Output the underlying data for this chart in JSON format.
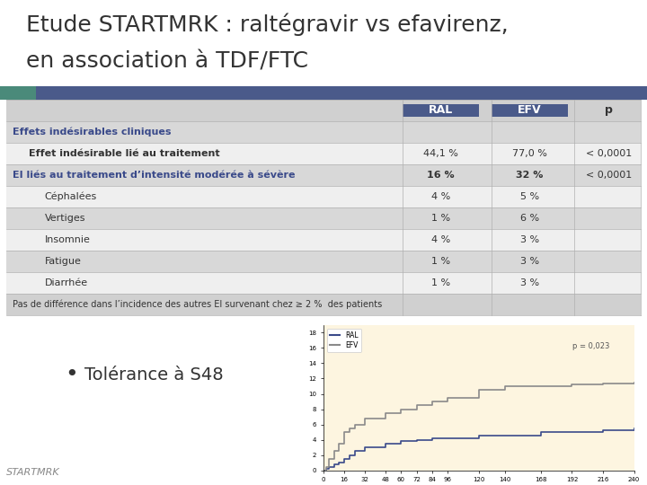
{
  "title_line1": "Etude STARTMRK : raltégravir vs efavirenz,",
  "title_line2": "en association à TDF/FTC",
  "title_color": "#333333",
  "title_fontsize": 18,
  "header_bar_color": "#4a5a8a",
  "header_teal_color": "#4a8a7a",
  "bg_color": "#ffffff",
  "table_header_bg": "#4a5a8a",
  "table_header_text": "#ffffff",
  "table_alt_bg": "#e8e8e8",
  "table_white_bg": "#ffffff",
  "col_ral": "RAL",
  "col_efv": "EFV",
  "col_p": "p",
  "rows": [
    {
      "label": "Effets indésirables cliniques",
      "ral": "",
      "efv": "",
      "p": "",
      "style": "section_header",
      "indent": 0
    },
    {
      "label": "Effet indésirable lié au traitement",
      "ral": "44,1 %",
      "efv": "77,0 %",
      "p": "< 0,0001",
      "style": "normal",
      "indent": 1
    },
    {
      "label": "EI liés au traitement d’intensité modérée à sévère",
      "ral": "16 %",
      "efv": "32 %",
      "p": "< 0,0001",
      "style": "section_header2",
      "indent": 0
    },
    {
      "label": "Céphalées",
      "ral": "4 %",
      "efv": "5 %",
      "p": "",
      "style": "normal",
      "indent": 2
    },
    {
      "label": "Vertiges",
      "ral": "1 %",
      "efv": "6 %",
      "p": "",
      "style": "normal",
      "indent": 2
    },
    {
      "label": "Insomnie",
      "ral": "4 %",
      "efv": "3 %",
      "p": "",
      "style": "normal",
      "indent": 2
    },
    {
      "label": "Fatigue",
      "ral": "1 %",
      "efv": "3 %",
      "p": "",
      "style": "normal",
      "indent": 2
    },
    {
      "label": "Diarrhée",
      "ral": "1 %",
      "efv": "3 %",
      "p": "",
      "style": "normal",
      "indent": 2
    },
    {
      "label": "Pas de différence dans l’incidence des autres EI survenant chez ≥ 2 %  des patients",
      "ral": "",
      "efv": "",
      "p": "",
      "style": "footnote",
      "indent": 0
    }
  ],
  "bullet_text": "Tolérance à S48",
  "startmrk_text": "STARTMRK",
  "ral_color": "#3a4a8a",
  "efv_color": "#8a8a8a",
  "p_annot": "p = 0,023",
  "ral_x": [
    0,
    2,
    4,
    8,
    12,
    16,
    20,
    24,
    32,
    48,
    60,
    72,
    84,
    96,
    120,
    140,
    168,
    192,
    216,
    240
  ],
  "ral_y": [
    0,
    0.2,
    0.5,
    0.8,
    1.0,
    1.5,
    2.0,
    2.5,
    3.0,
    3.5,
    3.8,
    4.0,
    4.2,
    4.2,
    4.5,
    4.5,
    5.0,
    5.0,
    5.3,
    5.5
  ],
  "efv_x": [
    0,
    2,
    4,
    8,
    12,
    16,
    20,
    24,
    32,
    48,
    60,
    72,
    84,
    96,
    120,
    140,
    168,
    192,
    216,
    240
  ],
  "efv_y": [
    0,
    0.5,
    1.5,
    2.5,
    3.5,
    5.0,
    5.5,
    6.0,
    6.8,
    7.5,
    8.0,
    8.5,
    9.0,
    9.5,
    10.5,
    11.0,
    11.0,
    11.2,
    11.3,
    11.5
  ],
  "graph_xlim": [
    0,
    240
  ],
  "graph_ylim": [
    0,
    19
  ],
  "graph_xticks": [
    0,
    16,
    32,
    48,
    60,
    72,
    84,
    96,
    120,
    140,
    168,
    192,
    216,
    240
  ],
  "graph_yticks": [
    0,
    2,
    4,
    6,
    8,
    10,
    12,
    14,
    16,
    18
  ]
}
